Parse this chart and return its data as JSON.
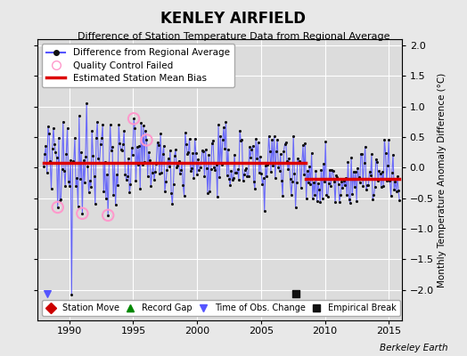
{
  "title": "KENLEY AIRFIELD",
  "subtitle": "Difference of Station Temperature Data from Regional Average",
  "ylabel": "Monthly Temperature Anomaly Difference (°C)",
  "xlabel_credit": "Berkeley Earth",
  "xlim": [
    1987.5,
    2016.0
  ],
  "ylim": [
    -2.5,
    2.1
  ],
  "yticks": [
    -2.0,
    -1.5,
    -1.0,
    -0.5,
    0.0,
    0.5,
    1.0,
    1.5,
    2.0
  ],
  "xticks": [
    1990,
    1995,
    2000,
    2005,
    2010,
    2015
  ],
  "mean_bias_before": 0.08,
  "mean_bias_after": -0.18,
  "break_year": 2008.5,
  "line_color": "#5555ff",
  "dot_color": "#111111",
  "bias_color": "#dd0000",
  "qc_color": "#ff99cc",
  "plot_bg": "#dcdcdc",
  "fig_bg": "#e8e8e8",
  "empirical_break_x": 2007.75,
  "empirical_break_y": -2.07,
  "time_obs_change_x": 1988.3,
  "time_obs_change_y": -2.07,
  "qc_indices": [
    13,
    36,
    60,
    84,
    96
  ],
  "deep_dip_idx": 26,
  "deep_dip_val": -2.08,
  "spike_idx": 13,
  "spike_val": 1.1,
  "seed": 12345
}
